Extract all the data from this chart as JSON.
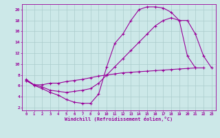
{
  "xlabel": "Windchill (Refroidissement éolien,°C)",
  "bg_color": "#cce8e8",
  "line_color": "#990099",
  "grid_color": "#aacccc",
  "xlim": [
    -0.5,
    23.5
  ],
  "ylim": [
    1.5,
    21
  ],
  "xticks": [
    0,
    1,
    2,
    3,
    4,
    5,
    6,
    7,
    8,
    9,
    10,
    11,
    12,
    13,
    14,
    15,
    16,
    17,
    18,
    19,
    20,
    21,
    22,
    23
  ],
  "yticks": [
    2,
    4,
    6,
    8,
    10,
    12,
    14,
    16,
    18,
    20
  ],
  "line1_x": [
    0,
    1,
    2,
    3,
    4,
    5,
    6,
    7,
    8,
    9,
    10,
    11,
    12,
    13,
    14,
    15,
    16,
    17,
    18,
    19,
    20,
    21,
    22
  ],
  "line1_y": [
    7.0,
    6.1,
    5.5,
    4.8,
    4.3,
    3.5,
    3.0,
    2.8,
    2.8,
    4.5,
    9.5,
    13.8,
    15.5,
    18.0,
    20.0,
    20.5,
    20.5,
    20.3,
    19.5,
    18.0,
    11.5,
    9.3,
    null
  ],
  "line2_x": [
    0,
    1,
    2,
    3,
    4,
    5,
    6,
    7,
    8,
    9,
    10,
    11,
    12,
    13,
    14,
    15,
    16,
    17,
    18,
    19,
    20,
    21,
    22,
    23
  ],
  "line2_y": [
    7.0,
    6.2,
    5.8,
    5.2,
    5.0,
    4.8,
    5.0,
    5.2,
    5.5,
    6.5,
    8.0,
    9.5,
    11.0,
    12.5,
    14.0,
    15.5,
    17.0,
    18.0,
    18.5,
    18.0,
    18.0,
    15.5,
    11.5,
    9.3
  ],
  "line3_x": [
    0,
    1,
    2,
    3,
    4,
    5,
    6,
    7,
    8,
    9,
    10,
    11,
    12,
    13,
    14,
    15,
    16,
    17,
    18,
    19,
    20,
    21,
    22,
    23
  ],
  "line3_y": [
    7.2,
    6.2,
    6.2,
    6.5,
    6.5,
    6.8,
    7.0,
    7.2,
    7.5,
    7.8,
    8.0,
    8.2,
    8.4,
    8.5,
    8.6,
    8.7,
    8.8,
    8.9,
    9.0,
    9.1,
    9.2,
    9.3,
    9.3,
    null
  ]
}
